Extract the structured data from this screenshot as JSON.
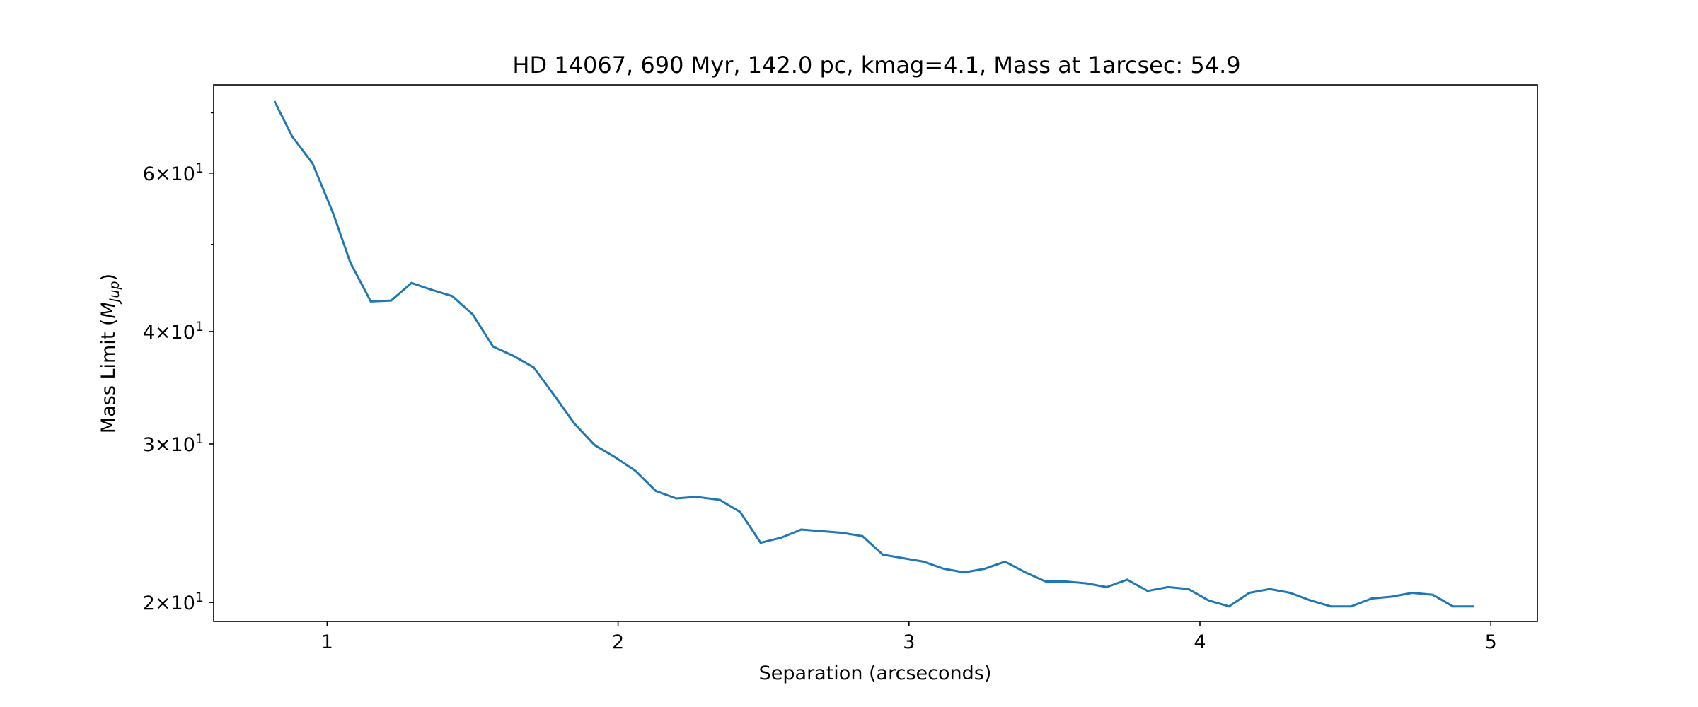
{
  "chart_data": {
    "type": "line",
    "title": "HD 14067, 690 Myr, 142.0 pc, kmag=4.1, Mass at 1arcsec: 54.9",
    "xlabel": "Separation (arcseconds)",
    "ylabel_prefix": "Mass Limit (",
    "ylabel_symbol": "M",
    "ylabel_subscript": "Jup",
    "ylabel_suffix": ")",
    "yscale": "log",
    "xlim": [
      0.61,
      5.16
    ],
    "ylim": [
      19.05,
      75.2
    ],
    "grid": false,
    "legend": "none",
    "color": "#1f77b4",
    "x_ticks": [
      {
        "value": 1,
        "label": "1"
      },
      {
        "value": 2,
        "label": "2"
      },
      {
        "value": 3,
        "label": "3"
      },
      {
        "value": 4,
        "label": "4"
      },
      {
        "value": 5,
        "label": "5"
      }
    ],
    "y_major_ticks": [
      {
        "value": 20,
        "mantissa": "2",
        "times": "×",
        "base": "10",
        "exp": "1"
      },
      {
        "value": 30,
        "mantissa": "3",
        "times": "×",
        "base": "10",
        "exp": "1"
      },
      {
        "value": 40,
        "mantissa": "4",
        "times": "×",
        "base": "10",
        "exp": "1"
      },
      {
        "value": 60,
        "mantissa": "6",
        "times": "×",
        "base": "10",
        "exp": "1"
      }
    ],
    "y_minor_ticks": [
      50,
      70
    ],
    "series": [
      {
        "x": [
          0.82,
          0.88,
          0.95,
          1.02,
          1.08,
          1.15,
          1.22,
          1.29,
          1.36,
          1.43,
          1.5,
          1.57,
          1.64,
          1.71,
          1.78,
          1.85,
          1.92,
          1.99,
          2.06,
          2.13,
          2.2,
          2.27,
          2.35,
          2.42,
          2.49,
          2.56,
          2.63,
          2.7,
          2.77,
          2.84,
          2.91,
          2.98,
          3.05,
          3.12,
          3.19,
          3.26,
          3.33,
          3.4,
          3.47,
          3.54,
          3.61,
          3.68,
          3.75,
          3.82,
          3.89,
          3.96,
          4.03,
          4.1,
          4.17,
          4.24,
          4.31,
          4.38,
          4.45,
          4.52,
          4.59,
          4.66,
          4.73,
          4.8,
          4.87,
          4.94
        ],
        "values": [
          72.0,
          65.9,
          61.5,
          54.2,
          47.7,
          43.2,
          43.3,
          45.3,
          44.5,
          43.8,
          41.8,
          38.5,
          37.6,
          36.5,
          34.0,
          31.6,
          29.9,
          29.0,
          28.0,
          26.6,
          26.1,
          26.2,
          26.0,
          25.2,
          23.3,
          23.6,
          24.1,
          24.0,
          23.9,
          23.7,
          22.6,
          22.4,
          22.2,
          21.8,
          21.6,
          21.8,
          22.2,
          21.6,
          21.1,
          21.1,
          21.0,
          20.8,
          21.2,
          20.6,
          20.8,
          20.7,
          20.1,
          19.8,
          20.5,
          20.7,
          20.5,
          20.1,
          19.8,
          19.8,
          20.2,
          20.3,
          20.5,
          20.4,
          19.8,
          19.8
        ]
      }
    ]
  }
}
